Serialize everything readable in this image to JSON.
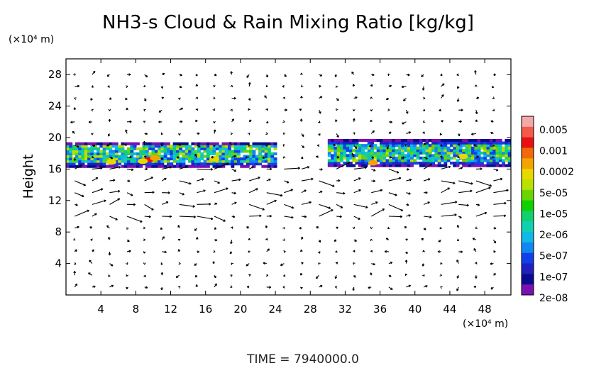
{
  "chart_data": {
    "type": "heatmap",
    "title": "NH3-s Cloud & Rain Mixing Ratio [kg/kg]",
    "ylabel": "Height",
    "y_unit": "(×10⁴ m)",
    "x_unit": "(×10⁴ m)",
    "x_ticks": [
      4,
      8,
      12,
      16,
      20,
      24,
      28,
      32,
      36,
      40,
      44,
      48
    ],
    "y_ticks": [
      4,
      8,
      12,
      16,
      20,
      24,
      28
    ],
    "xlim": [
      0,
      51
    ],
    "ylim": [
      0,
      30
    ],
    "colorbar": {
      "labels": [
        "0.005",
        "0.001",
        "0.0002",
        "5e-05",
        "1e-05",
        "2e-06",
        "5e-07",
        "1e-07",
        "2e-08"
      ],
      "colors": [
        "#f4a8a8",
        "#f25a4a",
        "#e81010",
        "#f06a0a",
        "#f5a300",
        "#e8d800",
        "#b8e000",
        "#6ad400",
        "#10d000",
        "#10d070",
        "#10d0b0",
        "#10b8e8",
        "#1088f0",
        "#1040e8",
        "#2020c0",
        "#0a0a90",
        "#7a10b0"
      ]
    },
    "cloud_layer": {
      "description_values": "mixing ratio field concentrated between heights 16 and 19.5",
      "patches": [
        {
          "x": [
            0,
            24
          ],
          "y": [
            16.2,
            19.3
          ]
        },
        {
          "x": [
            30,
            51
          ],
          "y": [
            16.3,
            19.6
          ]
        }
      ]
    },
    "footer": "TIME  =  7940000.0"
  }
}
